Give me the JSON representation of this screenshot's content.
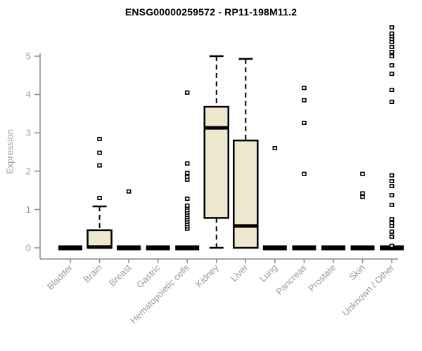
{
  "chart_data": {
    "type": "boxplot",
    "title": "ENSG00000259572 - RP11-198M11.2",
    "ylabel": "Expression",
    "xlabel": "",
    "yticks": [
      0,
      1,
      2,
      3,
      4,
      5
    ],
    "ylim": [
      0,
      5
    ],
    "grid": false,
    "legend": "none",
    "colors": {
      "box_fill": "#EDE8CE",
      "box_stroke": "#000000",
      "median": "#000000",
      "whisker": "#000000",
      "outlier_stroke": "#000000",
      "outlier_fill": "#FFFFFF",
      "axis": "#888888",
      "tick_label": "#999999",
      "title": "#000000",
      "background": "#FFFFFF"
    },
    "categories": [
      "Bladder",
      "Brain",
      "Breast",
      "Gastric",
      "Hematopoietic cells",
      "Kidney",
      "Liver",
      "Lung",
      "Pancreas",
      "Prostate",
      "Skin",
      "Unknown / Other"
    ],
    "boxes": [
      {
        "category": "Bladder",
        "q1": 0,
        "median": 0,
        "q3": 0,
        "whisker_low": 0,
        "whisker_high": 0,
        "outliers": []
      },
      {
        "category": "Brain",
        "q1": 0,
        "median": 0.02,
        "q3": 0.46,
        "whisker_low": 0,
        "whisker_high": 1.08,
        "outliers": [
          1.3,
          2.15,
          2.48,
          2.84
        ]
      },
      {
        "category": "Breast",
        "q1": 0,
        "median": 0,
        "q3": 0,
        "whisker_low": 0,
        "whisker_high": 0,
        "outliers": [
          1.47
        ]
      },
      {
        "category": "Gastric",
        "q1": 0,
        "median": 0,
        "q3": 0,
        "whisker_low": 0,
        "whisker_high": 0,
        "outliers": []
      },
      {
        "category": "Hematopoietic cells",
        "q1": 0,
        "median": 0,
        "q3": 0,
        "whisker_low": 0,
        "whisker_high": 0,
        "outliers": [
          0.5,
          0.56,
          0.62,
          0.68,
          0.74,
          0.8,
          0.86,
          0.92,
          0.98,
          1.05,
          1.1,
          1.28,
          1.78,
          1.85,
          1.95,
          2.2,
          4.05
        ]
      },
      {
        "category": "Kidney",
        "q1": 0.78,
        "median": 3.13,
        "q3": 3.68,
        "whisker_low": 0,
        "whisker_high": 5.0,
        "outliers": []
      },
      {
        "category": "Liver",
        "q1": 0,
        "median": 0.57,
        "q3": 2.8,
        "whisker_low": 0,
        "whisker_high": 4.93,
        "outliers": []
      },
      {
        "category": "Lung",
        "q1": 0,
        "median": 0,
        "q3": 0,
        "whisker_low": 0,
        "whisker_high": 0,
        "outliers": [
          2.6
        ]
      },
      {
        "category": "Pancreas",
        "q1": 0,
        "median": 0,
        "q3": 0,
        "whisker_low": 0,
        "whisker_high": 0,
        "outliers": [
          1.93,
          3.26,
          3.85,
          4.17
        ]
      },
      {
        "category": "Prostate",
        "q1": 0,
        "median": 0,
        "q3": 0,
        "whisker_low": 0,
        "whisker_high": 0,
        "outliers": []
      },
      {
        "category": "Skin",
        "q1": 0,
        "median": 0,
        "q3": 0,
        "whisker_low": 0,
        "whisker_high": 0,
        "outliers": [
          1.33,
          1.42,
          1.93
        ]
      },
      {
        "category": "Unknown / Other",
        "q1": 0,
        "median": 0,
        "q3": 0,
        "whisker_low": 0,
        "whisker_high": 0,
        "outliers": [
          0.05,
          0.29,
          0.42,
          0.57,
          0.65,
          0.75,
          1.12,
          1.37,
          1.61,
          1.74,
          1.89,
          3.81,
          4.12,
          4.54,
          4.76,
          5.0,
          5.11,
          5.24,
          5.37,
          5.45,
          5.52,
          5.59,
          5.75
        ]
      }
    ]
  }
}
